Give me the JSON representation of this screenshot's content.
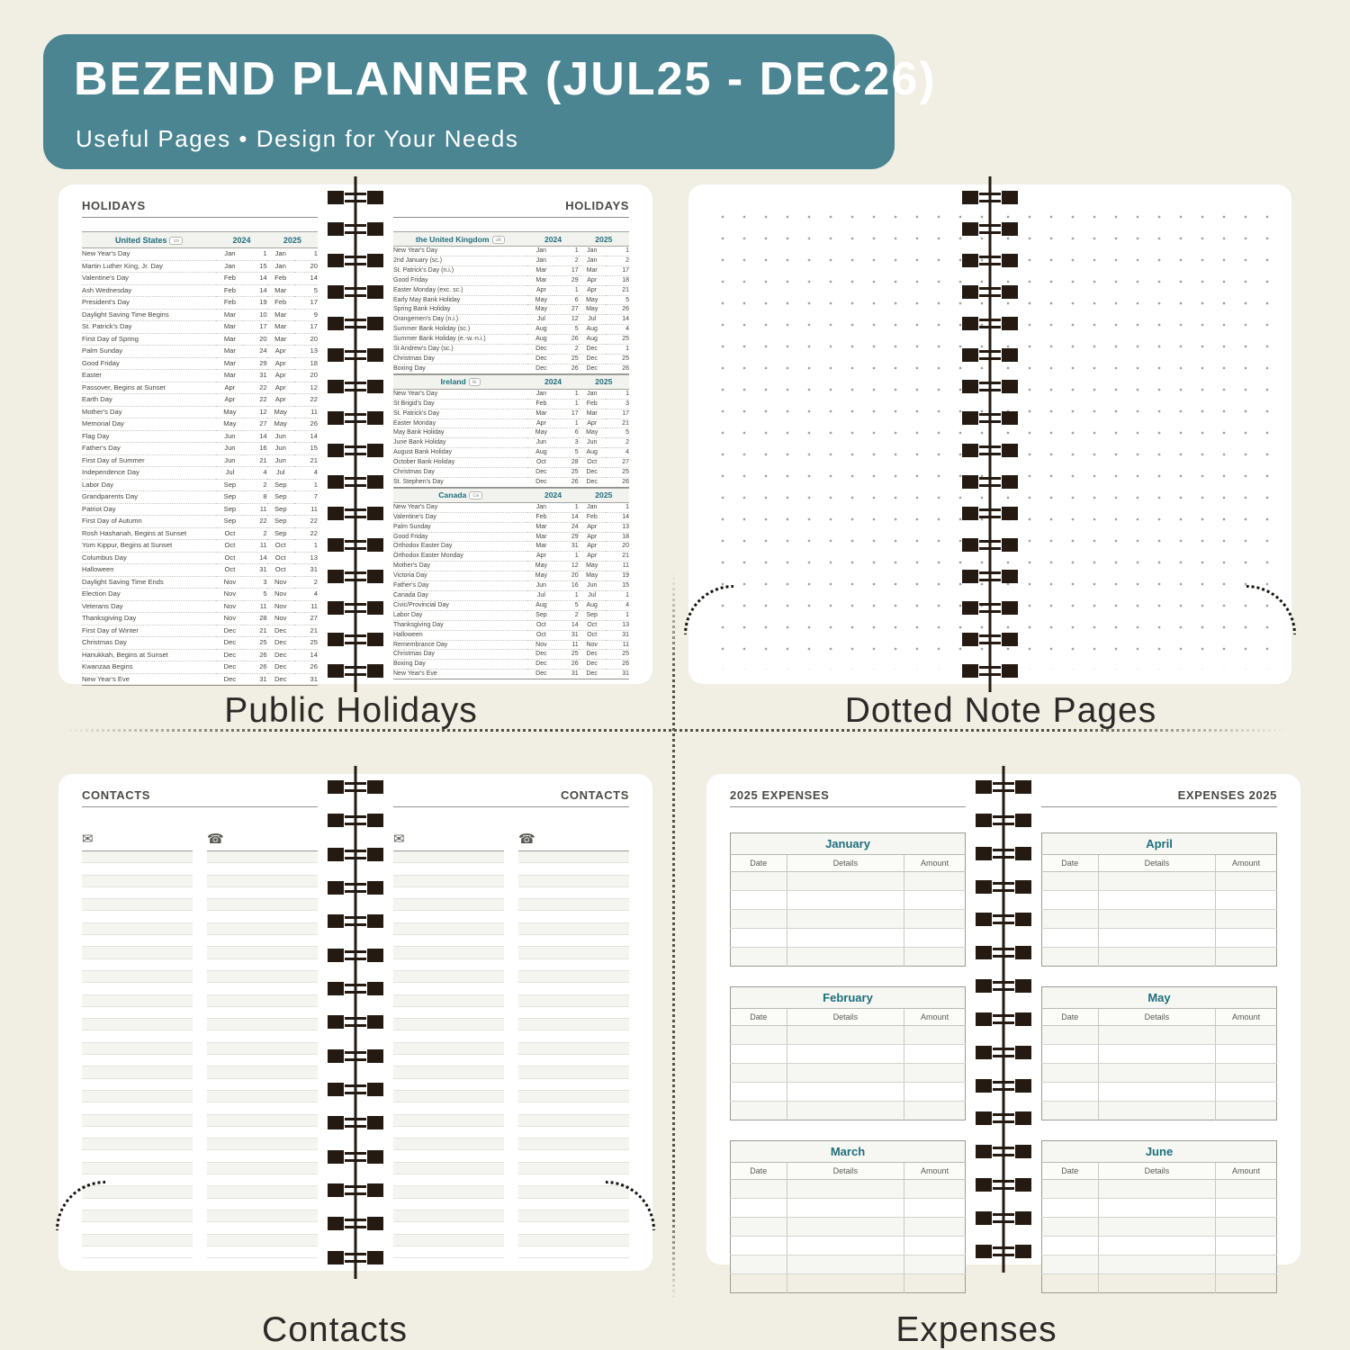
{
  "header": {
    "title": "BEZEND PLANNER (JUL25 - DEC26)",
    "subtitle": "Useful Pages  •  Design for Your Needs"
  },
  "colors": {
    "accent_teal": "#4a8591",
    "table_teal": "#1e6f7c",
    "page_bg": "#f1eee3",
    "spiral_dark": "#241a12",
    "caption_ink": "#2b2a26"
  },
  "captions": {
    "holidays": "Public Holidays",
    "notes": "Dotted Note Pages",
    "contacts": "Contacts",
    "expenses": "Expenses"
  },
  "holidays_spread": {
    "page_header": "HOLIDAYS",
    "year_columns": [
      "2024",
      "2025"
    ],
    "tables": [
      {
        "country": "United States",
        "badge": "us",
        "rows": [
          [
            "New Year's Day",
            "Jan",
            "1",
            "Jan",
            "1"
          ],
          [
            "Martin Luther King, Jr. Day",
            "Jan",
            "15",
            "Jan",
            "20"
          ],
          [
            "Valentine's Day",
            "Feb",
            "14",
            "Feb",
            "14"
          ],
          [
            "Ash Wednesday",
            "Feb",
            "14",
            "Mar",
            "5"
          ],
          [
            "President's Day",
            "Feb",
            "19",
            "Feb",
            "17"
          ],
          [
            "Daylight Saving Time Begins",
            "Mar",
            "10",
            "Mar",
            "9"
          ],
          [
            "St. Patrick's Day",
            "Mar",
            "17",
            "Mar",
            "17"
          ],
          [
            "First Day of Spring",
            "Mar",
            "20",
            "Mar",
            "20"
          ],
          [
            "Palm Sunday",
            "Mar",
            "24",
            "Apr",
            "13"
          ],
          [
            "Good Friday",
            "Mar",
            "29",
            "Apr",
            "18"
          ],
          [
            "Easter",
            "Mar",
            "31",
            "Apr",
            "20"
          ],
          [
            "Passover, Begins at Sunset",
            "Apr",
            "22",
            "Apr",
            "12"
          ],
          [
            "Earth Day",
            "Apr",
            "22",
            "Apr",
            "22"
          ],
          [
            "Mother's Day",
            "May",
            "12",
            "May",
            "11"
          ],
          [
            "Memorial Day",
            "May",
            "27",
            "May",
            "26"
          ],
          [
            "Flag Day",
            "Jun",
            "14",
            "Jun",
            "14"
          ],
          [
            "Father's Day",
            "Jun",
            "16",
            "Jun",
            "15"
          ],
          [
            "First Day of Summer",
            "Jun",
            "21",
            "Jun",
            "21"
          ],
          [
            "Independence Day",
            "Jul",
            "4",
            "Jul",
            "4"
          ],
          [
            "Labor Day",
            "Sep",
            "2",
            "Sep",
            "1"
          ],
          [
            "Grandparents Day",
            "Sep",
            "8",
            "Sep",
            "7"
          ],
          [
            "Patriot Day",
            "Sep",
            "11",
            "Sep",
            "11"
          ],
          [
            "First Day of Autumn",
            "Sep",
            "22",
            "Sep",
            "22"
          ],
          [
            "Rosh Hashanah, Begins at Sunset",
            "Oct",
            "2",
            "Sep",
            "22"
          ],
          [
            "Yom Kippur, Begins at Sunset",
            "Oct",
            "11",
            "Oct",
            "1"
          ],
          [
            "Columbus Day",
            "Oct",
            "14",
            "Oct",
            "13"
          ],
          [
            "Halloween",
            "Oct",
            "31",
            "Oct",
            "31"
          ],
          [
            "Daylight Saving Time Ends",
            "Nov",
            "3",
            "Nov",
            "2"
          ],
          [
            "Election Day",
            "Nov",
            "5",
            "Nov",
            "4"
          ],
          [
            "Veterans Day",
            "Nov",
            "11",
            "Nov",
            "11"
          ],
          [
            "Thanksgiving Day",
            "Nov",
            "28",
            "Nov",
            "27"
          ],
          [
            "First Day of Winter",
            "Dec",
            "21",
            "Dec",
            "21"
          ],
          [
            "Christmas Day",
            "Dec",
            "25",
            "Dec",
            "25"
          ],
          [
            "Hanukkah, Begins at Sunset",
            "Dec",
            "26",
            "Dec",
            "14"
          ],
          [
            "Kwanzaa Begins",
            "Dec",
            "26",
            "Dec",
            "26"
          ],
          [
            "New Year's Eve",
            "Dec",
            "31",
            "Dec",
            "31"
          ]
        ]
      },
      {
        "country": "the United Kingdom",
        "badge": "uk",
        "rows": [
          [
            "New Year's Day",
            "Jan",
            "1",
            "Jan",
            "1"
          ],
          [
            "2nd January (sc.)",
            "Jan",
            "2",
            "Jan",
            "2"
          ],
          [
            "St. Patrick's Day (n.i.)",
            "Mar",
            "17",
            "Mar",
            "17"
          ],
          [
            "Good Friday",
            "Mar",
            "29",
            "Apr",
            "18"
          ],
          [
            "Easter Monday (exc. sc.)",
            "Apr",
            "1",
            "Apr",
            "21"
          ],
          [
            "Early May Bank Holiday",
            "May",
            "6",
            "May",
            "5"
          ],
          [
            "Spring Bank Holiday",
            "May",
            "27",
            "May",
            "26"
          ],
          [
            "Orangemen's Day (n.i.)",
            "Jul",
            "12",
            "Jul",
            "14"
          ],
          [
            "Summer Bank Holiday (sc.)",
            "Aug",
            "5",
            "Aug",
            "4"
          ],
          [
            "Summer Bank Holiday (e.-w.-n.i.)",
            "Aug",
            "26",
            "Aug",
            "25"
          ],
          [
            "St Andrew's Day (sc.)",
            "Dec",
            "2",
            "Dec",
            "1"
          ],
          [
            "Christmas Day",
            "Dec",
            "25",
            "Dec",
            "25"
          ],
          [
            "Boxing Day",
            "Dec",
            "26",
            "Dec",
            "26"
          ]
        ]
      },
      {
        "country": "Ireland",
        "badge": "ie",
        "rows": [
          [
            "New Year's Day",
            "Jan",
            "1",
            "Jan",
            "1"
          ],
          [
            "St Brigid's Day",
            "Feb",
            "1",
            "Feb",
            "3"
          ],
          [
            "St. Patrick's Day",
            "Mar",
            "17",
            "Mar",
            "17"
          ],
          [
            "Easter Monday",
            "Apr",
            "1",
            "Apr",
            "21"
          ],
          [
            "May Bank Holiday",
            "May",
            "6",
            "May",
            "5"
          ],
          [
            "June Bank Holiday",
            "Jun",
            "3",
            "Jun",
            "2"
          ],
          [
            "August Bank Holiday",
            "Aug",
            "5",
            "Aug",
            "4"
          ],
          [
            "October Bank Holiday",
            "Oct",
            "28",
            "Oct",
            "27"
          ],
          [
            "Christmas Day",
            "Dec",
            "25",
            "Dec",
            "25"
          ],
          [
            "St. Stephen's Day",
            "Dec",
            "26",
            "Dec",
            "26"
          ]
        ]
      },
      {
        "country": "Canada",
        "badge": "ca",
        "rows": [
          [
            "New Year's Day",
            "Jan",
            "1",
            "Jan",
            "1"
          ],
          [
            "Valentine's Day",
            "Feb",
            "14",
            "Feb",
            "14"
          ],
          [
            "Palm Sunday",
            "Mar",
            "24",
            "Apr",
            "13"
          ],
          [
            "Good Friday",
            "Mar",
            "29",
            "Apr",
            "18"
          ],
          [
            "Orthodox Easter Day",
            "Mar",
            "31",
            "Apr",
            "20"
          ],
          [
            "Orthodox Easter Monday",
            "Apr",
            "1",
            "Apr",
            "21"
          ],
          [
            "Mother's Day",
            "May",
            "12",
            "May",
            "11"
          ],
          [
            "Victoria Day",
            "May",
            "20",
            "May",
            "19"
          ],
          [
            "Father's Day",
            "Jun",
            "16",
            "Jun",
            "15"
          ],
          [
            "Canada Day",
            "Jul",
            "1",
            "Jul",
            "1"
          ],
          [
            "Civic/Provincial Day",
            "Aug",
            "5",
            "Aug",
            "4"
          ],
          [
            "Labor Day",
            "Sep",
            "2",
            "Sep",
            "1"
          ],
          [
            "Thanksgiving Day",
            "Oct",
            "14",
            "Oct",
            "13"
          ],
          [
            "Halloween",
            "Oct",
            "31",
            "Oct",
            "31"
          ],
          [
            "Remembrance Day",
            "Nov",
            "11",
            "Nov",
            "11"
          ],
          [
            "Christmas Day",
            "Dec",
            "25",
            "Dec",
            "25"
          ],
          [
            "Boxing Day",
            "Dec",
            "26",
            "Dec",
            "26"
          ],
          [
            "New Year's Eve",
            "Dec",
            "31",
            "Dec",
            "31"
          ]
        ]
      }
    ]
  },
  "contacts_spread": {
    "page_header": "CONTACTS",
    "email_icon": "✉",
    "phone_icon": "☎",
    "lines_per_column": 34
  },
  "expenses_spread": {
    "left_header": "2025 EXPENSES",
    "right_header": "EXPENSES 2025",
    "columns": [
      "Date",
      "Details",
      "Amount"
    ],
    "left_months": [
      {
        "name": "January",
        "blank_rows": 5
      },
      {
        "name": "February",
        "blank_rows": 5
      },
      {
        "name": "March",
        "blank_rows": 6
      }
    ],
    "right_months": [
      {
        "name": "April",
        "blank_rows": 5
      },
      {
        "name": "May",
        "blank_rows": 5
      },
      {
        "name": "June",
        "blank_rows": 6
      }
    ]
  }
}
